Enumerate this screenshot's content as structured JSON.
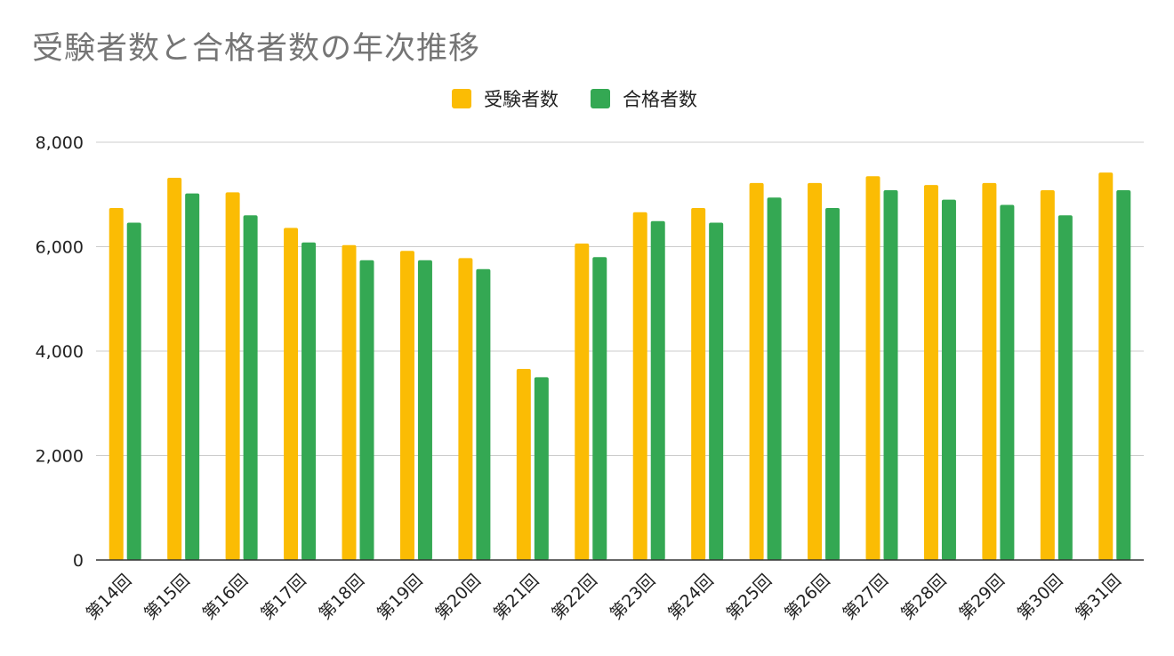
{
  "chart_data": {
    "type": "bar",
    "title": "受験者数と合格者数の年次推移",
    "xlabel": "",
    "ylabel": "",
    "categories": [
      "第14回",
      "第15回",
      "第16回",
      "第17回",
      "第18回",
      "第19回",
      "第20回",
      "第21回",
      "第22回",
      "第23回",
      "第24回",
      "第25回",
      "第26回",
      "第27回",
      "第28回",
      "第29回",
      "第30回",
      "第31回"
    ],
    "series": [
      {
        "name": "受験者数",
        "color": "#fbbc04",
        "values": [
          6740,
          7320,
          7040,
          6360,
          6030,
          5920,
          5780,
          3660,
          6060,
          6660,
          6740,
          7220,
          7220,
          7350,
          7180,
          7220,
          7080,
          7420
        ]
      },
      {
        "name": "合格者数",
        "color": "#34a853",
        "values": [
          6460,
          7020,
          6600,
          6080,
          5740,
          5740,
          5570,
          3500,
          5800,
          6490,
          6460,
          6940,
          6740,
          7080,
          6900,
          6800,
          6600,
          7080
        ]
      }
    ],
    "ylim": [
      0,
      8000
    ],
    "yticks": [
      "0",
      "2,000",
      "4,000",
      "6,000",
      "8,000"
    ],
    "ytick_values": [
      0,
      2000,
      4000,
      6000,
      8000
    ],
    "grid": true,
    "legend_position": "top-center"
  }
}
